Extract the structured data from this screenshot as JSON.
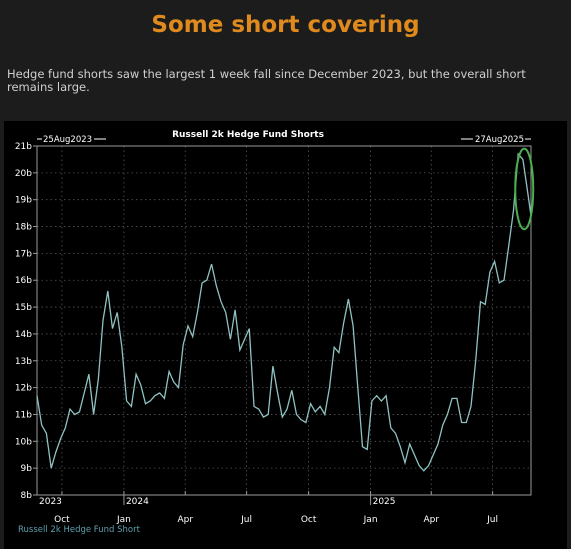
{
  "page": {
    "title": "Some short covering",
    "subtitle": "Hedge fund shorts saw the largest 1 week fall since December 2023, but the overall short remains large."
  },
  "chart_data": {
    "type": "line",
    "title": "Russell 2k Hedge Fund Shorts",
    "start_label": "25Aug2023",
    "end_label": "27Aug2025",
    "legend": "Russell 2k Hedge Fund Short",
    "ylim": [
      8,
      21
    ],
    "y_ticks": [
      "8b",
      "9b",
      "10b",
      "11b",
      "12b",
      "13b",
      "14b",
      "15b",
      "16b",
      "17b",
      "18b",
      "19b",
      "20b",
      "21b"
    ],
    "y_unit": "b",
    "x_start": "2023-08-25",
    "x_end": "2025-08-27",
    "x_ticks": [
      {
        "date": "2023-10-01",
        "label": "Oct"
      },
      {
        "date": "2024-01-01",
        "label": "Jan"
      },
      {
        "date": "2024-04-01",
        "label": "Apr"
      },
      {
        "date": "2024-07-01",
        "label": "Jul"
      },
      {
        "date": "2024-10-01",
        "label": "Oct"
      },
      {
        "date": "2025-01-01",
        "label": "Jan"
      },
      {
        "date": "2025-04-01",
        "label": "Apr"
      },
      {
        "date": "2025-07-01",
        "label": "Jul"
      }
    ],
    "year_labels": [
      {
        "date": "2023-08-25",
        "label": "2023"
      },
      {
        "date": "2024-01-01",
        "label": "2024"
      },
      {
        "date": "2025-01-01",
        "label": "2025"
      }
    ],
    "series": [
      {
        "name": "Russell 2k Hedge Fund Short",
        "color": "#8fc2c2",
        "x": [
          "2023-08-25",
          "2023-09-01",
          "2023-09-08",
          "2023-09-15",
          "2023-09-22",
          "2023-09-29",
          "2023-10-06",
          "2023-10-13",
          "2023-10-20",
          "2023-10-27",
          "2023-11-03",
          "2023-11-10",
          "2023-11-17",
          "2023-11-24",
          "2023-12-01",
          "2023-12-08",
          "2023-12-15",
          "2023-12-22",
          "2023-12-29",
          "2024-01-05",
          "2024-01-12",
          "2024-01-19",
          "2024-01-26",
          "2024-02-02",
          "2024-02-09",
          "2024-02-16",
          "2024-02-23",
          "2024-03-01",
          "2024-03-08",
          "2024-03-15",
          "2024-03-22",
          "2024-03-29",
          "2024-04-05",
          "2024-04-12",
          "2024-04-19",
          "2024-04-26",
          "2024-05-03",
          "2024-05-10",
          "2024-05-17",
          "2024-05-24",
          "2024-05-31",
          "2024-06-07",
          "2024-06-14",
          "2024-06-21",
          "2024-06-28",
          "2024-07-05",
          "2024-07-12",
          "2024-07-19",
          "2024-07-26",
          "2024-08-02",
          "2024-08-09",
          "2024-08-16",
          "2024-08-23",
          "2024-08-30",
          "2024-09-06",
          "2024-09-13",
          "2024-09-20",
          "2024-09-27",
          "2024-10-04",
          "2024-10-11",
          "2024-10-18",
          "2024-10-25",
          "2024-11-01",
          "2024-11-08",
          "2024-11-15",
          "2024-11-22",
          "2024-11-29",
          "2024-12-06",
          "2024-12-13",
          "2024-12-20",
          "2024-12-27",
          "2025-01-03",
          "2025-01-10",
          "2025-01-17",
          "2025-01-24",
          "2025-01-31",
          "2025-02-07",
          "2025-02-14",
          "2025-02-21",
          "2025-02-28",
          "2025-03-07",
          "2025-03-14",
          "2025-03-21",
          "2025-03-28",
          "2025-04-04",
          "2025-04-11",
          "2025-04-18",
          "2025-04-25",
          "2025-05-02",
          "2025-05-09",
          "2025-05-16",
          "2025-05-23",
          "2025-05-30",
          "2025-06-06",
          "2025-06-13",
          "2025-06-20",
          "2025-06-27",
          "2025-07-04",
          "2025-07-11",
          "2025-07-18",
          "2025-07-25",
          "2025-08-01",
          "2025-08-08",
          "2025-08-15",
          "2025-08-22",
          "2025-08-27"
        ],
        "values": [
          11.7,
          10.6,
          10.3,
          9.0,
          9.6,
          10.1,
          10.5,
          11.2,
          11.0,
          11.1,
          11.8,
          12.5,
          11.0,
          12.3,
          14.5,
          15.6,
          14.2,
          14.8,
          13.5,
          11.5,
          11.3,
          12.5,
          12.1,
          11.4,
          11.5,
          11.7,
          11.8,
          11.6,
          12.6,
          12.2,
          12.0,
          13.6,
          14.3,
          13.9,
          14.8,
          15.9,
          16.0,
          16.6,
          15.8,
          15.2,
          14.8,
          13.8,
          14.9,
          13.4,
          13.8,
          14.2,
          11.3,
          11.2,
          10.9,
          11.0,
          12.8,
          11.8,
          10.9,
          11.2,
          11.9,
          11.0,
          10.8,
          10.7,
          11.4,
          11.1,
          11.3,
          11.0,
          12.0,
          13.5,
          13.3,
          14.4,
          15.3,
          14.3,
          12.0,
          9.8,
          9.7,
          11.5,
          11.7,
          11.5,
          11.7,
          10.5,
          10.3,
          9.8,
          9.2,
          9.9,
          9.5,
          9.1,
          8.9,
          9.1,
          9.5,
          9.9,
          10.6,
          11.0,
          11.6,
          11.6,
          10.7,
          10.7,
          11.3,
          13.0,
          15.2,
          15.1,
          16.3,
          16.7,
          15.9,
          16.0,
          17.3,
          18.6,
          20.7,
          20.5,
          19.3,
          18.4
        ]
      }
    ],
    "highlight": {
      "shape": "ellipse",
      "color": "#4caf50"
    },
    "grid": true
  }
}
